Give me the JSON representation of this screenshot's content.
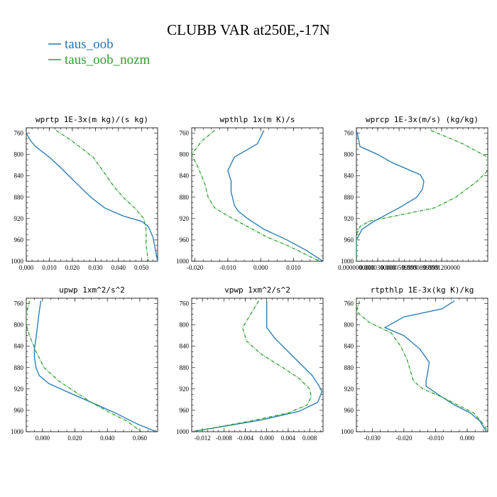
{
  "figure": {
    "title": "CLUBB VAR at250E,-17N",
    "legend": [
      {
        "name": "taus_oob",
        "color": "#1f77b4",
        "dash": "solid"
      },
      {
        "name": "taus_oob_nozm",
        "color": "#2ca02c",
        "dash": "dashdot"
      }
    ]
  },
  "chart_data": [
    {
      "type": "line",
      "title": "wprtp  1E-3x(m kg)/(s kg)",
      "xlim": [
        0.0,
        0.057
      ],
      "ylim": [
        1000,
        750
      ],
      "yticks": [
        760,
        800,
        840,
        880,
        920,
        960,
        1000
      ],
      "xticks": [
        {
          "v": 0.0,
          "label": "0.000"
        },
        {
          "v": 0.01,
          "label": "0.010"
        },
        {
          "v": 0.02,
          "label": "0.020"
        },
        {
          "v": 0.03,
          "label": "0.030"
        },
        {
          "v": 0.04,
          "label": "0.040"
        },
        {
          "v": 0.05,
          "label": "0.050"
        }
      ],
      "series": [
        {
          "name": "taus_oob",
          "points": [
            [
              0.0,
              760
            ],
            [
              0.002,
              775
            ],
            [
              0.004,
              785
            ],
            [
              0.01,
              805
            ],
            [
              0.015,
              825
            ],
            [
              0.022,
              855
            ],
            [
              0.028,
              880
            ],
            [
              0.034,
              900
            ],
            [
              0.042,
              915
            ],
            [
              0.05,
              925
            ],
            [
              0.053,
              935
            ],
            [
              0.055,
              955
            ],
            [
              0.057,
              1000
            ]
          ]
        },
        {
          "name": "taus_oob_nozm",
          "points": [
            [
              0.013,
              755
            ],
            [
              0.02,
              775
            ],
            [
              0.029,
              805
            ],
            [
              0.034,
              835
            ],
            [
              0.038,
              860
            ],
            [
              0.042,
              880
            ],
            [
              0.047,
              900
            ],
            [
              0.051,
              920
            ],
            [
              0.052,
              940
            ],
            [
              0.052,
              970
            ],
            [
              0.053,
              1000
            ]
          ]
        }
      ]
    },
    {
      "type": "line",
      "title": "wpthlp  1x(m K)/s",
      "xlim": [
        -0.021,
        0.019
      ],
      "ylim": [
        1000,
        750
      ],
      "yticks": [
        760,
        800,
        840,
        880,
        920,
        960,
        1000
      ],
      "xticks": [
        {
          "v": -0.02,
          "label": "-0.020"
        },
        {
          "v": -0.01,
          "label": "-0.010"
        },
        {
          "v": 0.0,
          "label": "0.000"
        },
        {
          "v": 0.01,
          "label": "0.010"
        }
      ],
      "series": [
        {
          "name": "taus_oob",
          "points": [
            [
              0.001,
              755
            ],
            [
              -0.001,
              780
            ],
            [
              -0.008,
              805
            ],
            [
              -0.01,
              830
            ],
            [
              -0.009,
              850
            ],
            [
              -0.009,
              870
            ],
            [
              -0.008,
              895
            ],
            [
              -0.007,
              905
            ],
            [
              -0.004,
              920
            ],
            [
              0.001,
              940
            ],
            [
              0.008,
              960
            ],
            [
              0.014,
              980
            ],
            [
              0.019,
              1000
            ]
          ]
        },
        {
          "name": "taus_oob_nozm",
          "points": [
            [
              -0.014,
              755
            ],
            [
              -0.018,
              775
            ],
            [
              -0.021,
              800
            ],
            [
              -0.019,
              825
            ],
            [
              -0.017,
              855
            ],
            [
              -0.016,
              880
            ],
            [
              -0.014,
              900
            ],
            [
              -0.01,
              915
            ],
            [
              -0.004,
              935
            ],
            [
              0.002,
              955
            ],
            [
              0.008,
              970
            ],
            [
              0.013,
              985
            ],
            [
              0.018,
              1000
            ]
          ]
        }
      ]
    },
    {
      "type": "line",
      "title": "wprcp  1E-3x(m/s) (kg/kg)",
      "xlim": [
        0.0,
        0.000185
      ],
      "ylim": [
        1000,
        750
      ],
      "yticks": [
        760,
        800,
        840,
        880,
        920,
        960,
        1000
      ],
      "xticks": [
        {
          "v": 0.0,
          "label": "0.0000000000"
        },
        {
          "v": 3e-05,
          "label": "0.0000300000"
        },
        {
          "v": 6e-05,
          "label": "0.0000599999"
        },
        {
          "v": 9e-05,
          "label": "0.0000899999"
        },
        {
          "v": 0.00012,
          "label": "0.0001200000"
        }
      ],
      "series": [
        {
          "name": "taus_oob",
          "points": [
            [
              0.0,
              755
            ],
            [
              2e-06,
              765
            ],
            [
              5e-06,
              785
            ],
            [
              3e-05,
              800
            ],
            [
              5e-05,
              815
            ],
            [
              9e-05,
              838
            ],
            [
              9.5e-05,
              850
            ],
            [
              9.3e-05,
              865
            ],
            [
              8.5e-05,
              880
            ],
            [
              6e-05,
              900
            ],
            [
              2.5e-05,
              925
            ],
            [
              8e-06,
              940
            ],
            [
              0.0,
              960
            ],
            [
              0.0,
              1000
            ]
          ]
        },
        {
          "name": "taus_oob_nozm",
          "points": [
            [
              0.000105,
              755
            ],
            [
              0.00015,
              780
            ],
            [
              0.000185,
              805
            ],
            [
              0.000185,
              830
            ],
            [
              0.00017,
              850
            ],
            [
              0.00014,
              880
            ],
            [
              0.00011,
              900
            ],
            [
              5.5e-05,
              915
            ],
            [
              1.8e-05,
              925
            ],
            [
              5e-06,
              935
            ],
            [
              0.0,
              950
            ],
            [
              0.0,
              1000
            ]
          ]
        }
      ]
    },
    {
      "type": "line",
      "title": "upwp  1xm^2/s^2",
      "xlim": [
        -0.01,
        0.071
      ],
      "ylim": [
        1000,
        750
      ],
      "yticks": [
        760,
        800,
        840,
        880,
        920,
        960,
        1000
      ],
      "xticks": [
        {
          "v": 0.0,
          "label": "0.000"
        },
        {
          "v": 0.02,
          "label": "0.020"
        },
        {
          "v": 0.04,
          "label": "0.040"
        },
        {
          "v": 0.06,
          "label": "0.060"
        }
      ],
      "series": [
        {
          "name": "taus_oob",
          "points": [
            [
              -0.001,
              755
            ],
            [
              -0.002,
              775
            ],
            [
              -0.003,
              800
            ],
            [
              -0.004,
              825
            ],
            [
              -0.005,
              845
            ],
            [
              -0.005,
              860
            ],
            [
              -0.004,
              880
            ],
            [
              -0.002,
              895
            ],
            [
              0.004,
              910
            ],
            [
              0.015,
              925
            ],
            [
              0.03,
              945
            ],
            [
              0.045,
              965
            ],
            [
              0.058,
              985
            ],
            [
              0.07,
              1000
            ]
          ]
        },
        {
          "name": "taus_oob_nozm",
          "points": [
            [
              -0.008,
              755
            ],
            [
              -0.01,
              780
            ],
            [
              -0.01,
              800
            ],
            [
              -0.008,
              820
            ],
            [
              -0.004,
              850
            ],
            [
              0.001,
              880
            ],
            [
              0.01,
              905
            ],
            [
              0.02,
              925
            ],
            [
              0.03,
              945
            ],
            [
              0.042,
              965
            ],
            [
              0.052,
              980
            ],
            [
              0.061,
              1000
            ]
          ]
        }
      ]
    },
    {
      "type": "line",
      "title": "vpwp  1xm^2/s^2",
      "xlim": [
        -0.014,
        0.0105
      ],
      "ylim": [
        1000,
        750
      ],
      "yticks": [
        760,
        800,
        840,
        880,
        920,
        960,
        1000
      ],
      "xticks": [
        {
          "v": -0.012,
          "label": "-0.012"
        },
        {
          "v": -0.008,
          "label": "-0.008"
        },
        {
          "v": -0.004,
          "label": "-0.004"
        },
        {
          "v": 0.0,
          "label": "0.000"
        },
        {
          "v": 0.004,
          "label": "0.004"
        },
        {
          "v": 0.008,
          "label": "0.008"
        }
      ],
      "series": [
        {
          "name": "taus_oob",
          "points": [
            [
              0.0,
              755
            ],
            [
              0.0,
              780
            ],
            [
              0.0,
              805
            ],
            [
              0.0015,
              825
            ],
            [
              0.0035,
              845
            ],
            [
              0.006,
              870
            ],
            [
              0.0085,
              895
            ],
            [
              0.0098,
              915
            ],
            [
              0.0103,
              925
            ],
            [
              0.0095,
              945
            ],
            [
              0.006,
              962
            ],
            [
              -0.001,
              978
            ],
            [
              -0.008,
              990
            ],
            [
              -0.014,
              1000
            ]
          ]
        },
        {
          "name": "taus_oob_nozm",
          "points": [
            [
              -0.0015,
              755
            ],
            [
              -0.003,
              780
            ],
            [
              -0.0045,
              805
            ],
            [
              -0.0038,
              830
            ],
            [
              -0.001,
              855
            ],
            [
              0.003,
              880
            ],
            [
              0.006,
              900
            ],
            [
              0.008,
              920
            ],
            [
              0.0083,
              935
            ],
            [
              0.0075,
              950
            ],
            [
              0.004,
              965
            ],
            [
              -0.003,
              980
            ],
            [
              -0.01,
              993
            ],
            [
              -0.014,
              1000
            ]
          ]
        }
      ]
    },
    {
      "type": "line",
      "title": "rtpthlp  1E-3x(kg K)/kg",
      "xlim": [
        -0.035,
        0.0065
      ],
      "ylim": [
        1000,
        750
      ],
      "yticks": [
        760,
        800,
        840,
        880,
        920,
        960,
        1000
      ],
      "xticks": [
        {
          "v": -0.03,
          "label": "-0.030"
        },
        {
          "v": -0.02,
          "label": "-0.020"
        },
        {
          "v": -0.01,
          "label": "-0.010"
        },
        {
          "v": 0.0,
          "label": "0.000"
        }
      ],
      "series": [
        {
          "name": "taus_oob",
          "points": [
            [
              -0.004,
              755
            ],
            [
              -0.008,
              770
            ],
            [
              -0.02,
              785
            ],
            [
              -0.026,
              805
            ],
            [
              -0.02,
              820
            ],
            [
              -0.015,
              845
            ],
            [
              -0.012,
              870
            ],
            [
              -0.0125,
              890
            ],
            [
              -0.013,
              905
            ],
            [
              -0.013,
              915
            ],
            [
              -0.008,
              935
            ],
            [
              -0.004,
              950
            ],
            [
              0.001,
              965
            ],
            [
              0.004,
              980
            ],
            [
              0.006,
              1000
            ]
          ]
        },
        {
          "name": "taus_oob_nozm",
          "points": [
            [
              -0.034,
              755
            ],
            [
              -0.035,
              775
            ],
            [
              -0.031,
              795
            ],
            [
              -0.024,
              815
            ],
            [
              -0.021,
              840
            ],
            [
              -0.019,
              865
            ],
            [
              -0.018,
              885
            ],
            [
              -0.017,
              905
            ],
            [
              -0.014,
              920
            ],
            [
              -0.008,
              935
            ],
            [
              -0.003,
              950
            ],
            [
              0.002,
              965
            ],
            [
              0.005,
              985
            ],
            [
              0.0065,
              1000
            ]
          ]
        }
      ]
    }
  ]
}
